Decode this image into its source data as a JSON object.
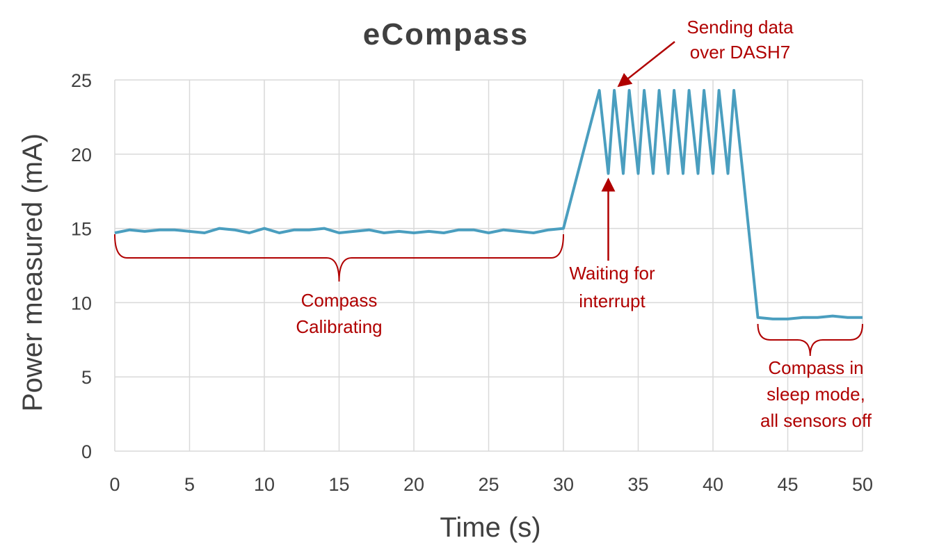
{
  "chart_data": {
    "type": "line",
    "title": "eCompass",
    "xlabel": "Time (s)",
    "ylabel": "Power measured (mA)",
    "xlim": [
      0,
      50
    ],
    "ylim": [
      0,
      25
    ],
    "xticks": [
      0,
      5,
      10,
      15,
      20,
      25,
      30,
      35,
      40,
      45,
      50
    ],
    "yticks": [
      0,
      5,
      10,
      15,
      20,
      25
    ],
    "grid": true,
    "line_color": "#4a9ebf",
    "annotation_color": "#b00000",
    "series": [
      {
        "x": [
          0,
          1,
          2,
          3,
          4,
          5,
          6,
          7,
          8,
          9,
          10,
          11,
          12,
          13,
          14,
          15,
          16,
          17,
          18,
          19,
          20,
          21,
          22,
          23,
          24,
          25,
          26,
          27,
          28,
          29,
          30,
          32.4,
          33.0,
          33.4,
          34.0,
          34.4,
          35.0,
          35.4,
          36.0,
          36.4,
          37.0,
          37.4,
          38.0,
          38.4,
          39.0,
          39.4,
          40.0,
          40.4,
          41.0,
          41.4,
          42.0,
          43.0,
          44.0,
          45.0,
          46.0,
          47.0,
          48.0,
          49.0,
          50.0
        ],
        "y": [
          14.7,
          14.9,
          14.8,
          14.9,
          14.9,
          14.8,
          14.7,
          15.0,
          14.9,
          14.7,
          15.0,
          14.7,
          14.9,
          14.9,
          15.0,
          14.7,
          14.8,
          14.9,
          14.7,
          14.8,
          14.7,
          14.8,
          14.7,
          14.9,
          14.9,
          14.7,
          14.9,
          14.8,
          14.7,
          14.9,
          15.0,
          24.3,
          18.7,
          24.3,
          18.7,
          24.3,
          18.7,
          24.3,
          18.7,
          24.3,
          18.7,
          24.3,
          18.7,
          24.3,
          18.7,
          24.3,
          18.7,
          24.3,
          18.7,
          24.3,
          18.7,
          9.0,
          8.9,
          8.9,
          9.0,
          9.0,
          9.1,
          9.0,
          9.0
        ]
      }
    ],
    "annotations": [
      {
        "id": "calibrating",
        "lines": [
          "Compass",
          "Calibrating"
        ],
        "range": [
          0,
          30
        ],
        "style": "brace"
      },
      {
        "id": "interrupt",
        "lines": [
          "Waiting for",
          "interrupt"
        ],
        "point": [
          33,
          18.7
        ],
        "style": "arrow"
      },
      {
        "id": "sending",
        "lines": [
          "Sending data",
          "over DASH7"
        ],
        "point": [
          33.4,
          24.3
        ],
        "style": "arrow"
      },
      {
        "id": "sleep",
        "lines": [
          "Compass in",
          "sleep mode,",
          "all sensors off"
        ],
        "range": [
          43,
          50
        ],
        "style": "brace"
      }
    ]
  }
}
